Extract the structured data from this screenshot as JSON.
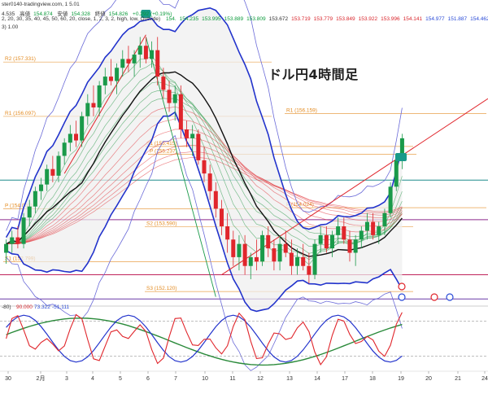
{
  "header": {
    "line1": {
      "source": "ster0140-tradingview.com, 1 5.01",
      "prefix": "4.535",
      "high_label": "高値",
      "high": "154.874",
      "low_label": "安値",
      "low": "154.328",
      "close_label": "終値",
      "close": "154.826",
      "change": "+0.292 (+0.19%)"
    },
    "line2": "2, 20, 30, 35, 40, 45, 50, 60, 20, close, 1, 2, 3, 2, high, low, Outside)",
    "line3": "3)  1.00",
    "ma_values": [
      "154.",
      "154.235",
      "153.995",
      "153.889",
      "153.809",
      "153.672",
      "153.719",
      "153.779",
      "153.849",
      "153.922",
      "153.996",
      "154.141",
      "154.977",
      "151.887",
      "154.462"
    ]
  },
  "title_jp": "ドル円4時間足",
  "chart_data": {
    "type": "candlestick",
    "title": "ドル円4時間足",
    "x_tick_labels": [
      "30",
      "2月",
      "3",
      "4",
      "5",
      "6",
      "7",
      "10",
      "11",
      "12",
      "13",
      "14",
      "17",
      "18",
      "19",
      "20",
      "21",
      "24"
    ],
    "ylim": [
      151.9,
      158.0
    ],
    "levels": [
      {
        "label": "R2 (157.331)",
        "value": 157.331,
        "color": "#e38a1f"
      },
      {
        "label": "R1 (156.097)",
        "value": 156.097,
        "color": "#e38a1f"
      },
      {
        "label": "R1 (156.159)",
        "value": 156.159,
        "color": "#e38a1f"
      },
      {
        "label": "P (155.237)",
        "value": 155.237,
        "color": "#e38a1f"
      },
      {
        "label": "S1 (155.415)",
        "value": 155.415,
        "color": "#e38a1f"
      },
      {
        "label": "P (154.024)",
        "value": 154.024,
        "color": "#e38a1f"
      },
      {
        "label": "P (154.001)",
        "value": 154.001,
        "color": "#e38a1f"
      },
      {
        "label": "S2 (153.590)",
        "value": 153.59,
        "color": "#e38a1f"
      },
      {
        "label": "S1 (152.799)",
        "value": 152.799,
        "color": "#e38a1f"
      },
      {
        "label": "S3 (152.120)",
        "value": 152.12,
        "color": "#e38a1f"
      }
    ],
    "horizontal_lines": [
      {
        "value": 154.65,
        "color": "#1f8c8c"
      },
      {
        "value": 153.75,
        "color": "#8e2a8e"
      },
      {
        "value": 152.5,
        "color": "#c0245a"
      },
      {
        "value": 151.95,
        "color": "#6a3aa8"
      }
    ],
    "candles": [
      [
        153.0,
        153.3,
        152.75,
        153.2
      ],
      [
        153.2,
        153.5,
        153.0,
        153.35
      ],
      [
        153.35,
        153.6,
        153.1,
        153.2
      ],
      [
        153.2,
        153.9,
        153.1,
        153.8
      ],
      [
        153.8,
        154.2,
        153.6,
        154.05
      ],
      [
        154.05,
        154.5,
        153.9,
        154.4
      ],
      [
        154.4,
        154.7,
        154.2,
        154.55
      ],
      [
        154.55,
        155.0,
        154.4,
        154.9
      ],
      [
        154.9,
        155.2,
        154.6,
        154.75
      ],
      [
        154.75,
        155.3,
        154.6,
        155.2
      ],
      [
        155.2,
        155.6,
        155.0,
        155.5
      ],
      [
        155.5,
        155.9,
        155.3,
        155.7
      ],
      [
        155.7,
        156.0,
        155.4,
        155.55
      ],
      [
        155.55,
        156.2,
        155.4,
        156.1
      ],
      [
        156.1,
        156.6,
        155.9,
        156.4
      ],
      [
        156.4,
        156.8,
        156.1,
        156.3
      ],
      [
        156.3,
        156.9,
        156.1,
        156.8
      ],
      [
        156.8,
        157.2,
        156.6,
        157.0
      ],
      [
        157.0,
        157.4,
        156.8,
        156.9
      ],
      [
        156.9,
        157.3,
        156.6,
        157.2
      ],
      [
        157.2,
        157.6,
        157.0,
        157.4
      ],
      [
        157.4,
        157.7,
        157.1,
        157.3
      ],
      [
        157.3,
        157.6,
        157.0,
        157.5
      ],
      [
        157.5,
        157.9,
        157.2,
        157.7
      ],
      [
        157.7,
        157.9,
        157.3,
        157.4
      ],
      [
        157.4,
        157.8,
        157.2,
        157.6
      ],
      [
        157.6,
        157.9,
        156.8,
        157.0
      ],
      [
        157.0,
        157.2,
        156.5,
        156.7
      ],
      [
        156.7,
        156.9,
        156.2,
        156.4
      ],
      [
        156.4,
        156.8,
        156.0,
        156.6
      ],
      [
        156.6,
        156.8,
        155.6,
        155.8
      ],
      [
        155.8,
        156.0,
        155.4,
        155.6
      ],
      [
        155.6,
        155.9,
        155.2,
        155.7
      ],
      [
        155.7,
        155.8,
        155.0,
        155.1
      ],
      [
        155.1,
        155.4,
        154.6,
        154.8
      ],
      [
        154.8,
        155.0,
        154.2,
        154.4
      ],
      [
        154.4,
        154.6,
        153.8,
        154.0
      ],
      [
        154.0,
        154.2,
        153.4,
        153.6
      ],
      [
        153.6,
        153.9,
        153.0,
        153.3
      ],
      [
        153.3,
        153.5,
        152.7,
        152.9
      ],
      [
        152.9,
        153.4,
        152.6,
        153.2
      ],
      [
        153.2,
        153.4,
        152.5,
        152.7
      ],
      [
        152.7,
        153.0,
        152.4,
        152.9
      ],
      [
        152.9,
        153.3,
        152.6,
        152.8
      ],
      [
        152.8,
        153.5,
        152.7,
        153.4
      ],
      [
        153.4,
        153.6,
        152.9,
        153.1
      ],
      [
        153.1,
        153.3,
        152.6,
        152.8
      ],
      [
        152.8,
        153.4,
        152.6,
        153.2
      ],
      [
        153.2,
        153.5,
        152.9,
        153.0
      ],
      [
        153.0,
        153.3,
        152.5,
        152.7
      ],
      [
        152.7,
        153.1,
        152.5,
        152.9
      ],
      [
        152.9,
        153.2,
        152.6,
        152.7
      ],
      [
        152.7,
        153.0,
        152.3,
        152.5
      ],
      [
        152.5,
        153.3,
        152.4,
        153.2
      ],
      [
        153.2,
        153.6,
        153.0,
        153.4
      ],
      [
        153.4,
        153.6,
        153.0,
        153.1
      ],
      [
        153.1,
        153.5,
        152.9,
        153.4
      ],
      [
        153.4,
        153.8,
        153.2,
        153.6
      ],
      [
        153.6,
        153.8,
        153.2,
        153.3
      ],
      [
        153.3,
        153.5,
        152.8,
        153.0
      ],
      [
        153.0,
        153.4,
        152.7,
        153.3
      ],
      [
        153.3,
        153.6,
        153.1,
        153.5
      ],
      [
        153.5,
        153.9,
        153.3,
        153.7
      ],
      [
        153.7,
        153.9,
        153.3,
        153.4
      ],
      [
        153.4,
        153.7,
        153.2,
        153.6
      ],
      [
        153.6,
        154.0,
        153.4,
        153.9
      ],
      [
        153.9,
        154.6,
        153.8,
        154.5
      ],
      [
        154.5,
        155.2,
        154.4,
        155.1
      ],
      [
        155.1,
        155.7,
        154.9,
        155.6
      ]
    ],
    "oscillator": {
      "labels": [
        "-80)",
        "90.000",
        "73.322",
        "-51.111"
      ],
      "levels": [
        80,
        20
      ],
      "range": [
        0,
        100
      ]
    }
  },
  "colors": {
    "up": "#1a9a4a",
    "down": "#e0262c",
    "bb": "#2233cc",
    "ema_fast": "#2a9a4a",
    "ema_slow": "#e0262c",
    "mid": "#111111"
  }
}
